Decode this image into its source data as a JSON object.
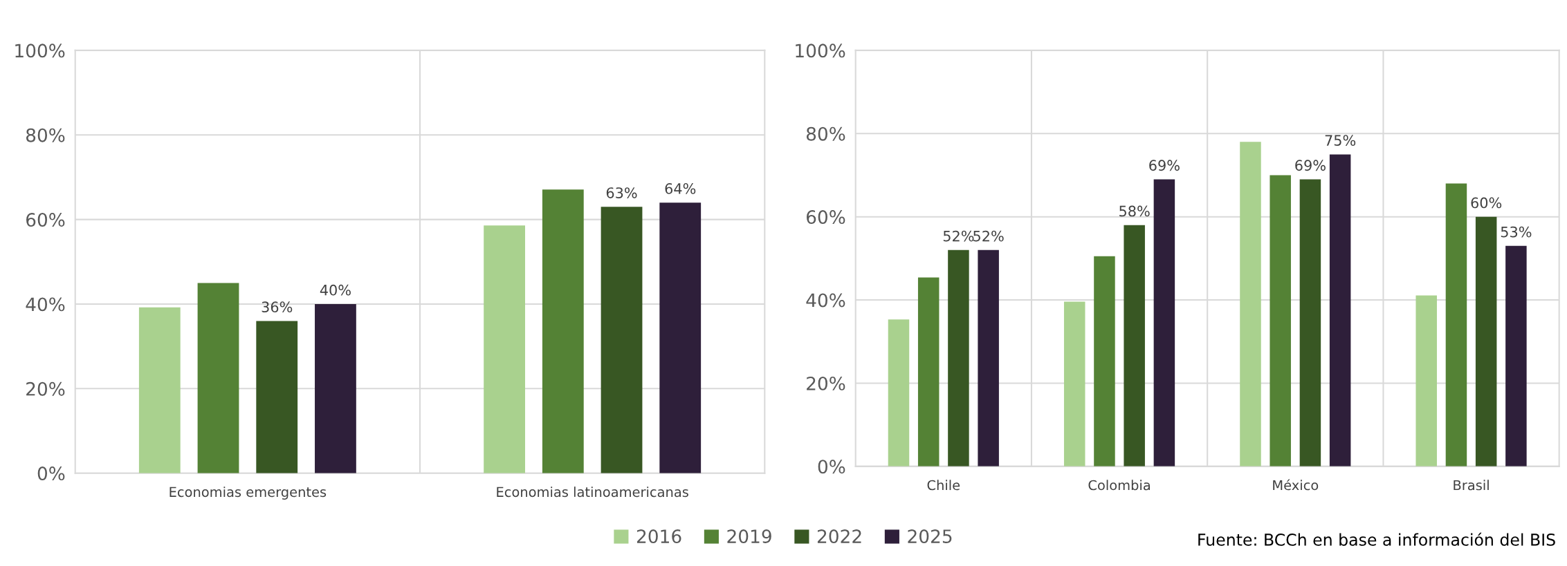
{
  "chart_data": [
    {
      "type": "bar",
      "categories": [
        "Economias emergentes",
        "Economias latinoamericanas"
      ],
      "ylim": [
        0,
        100
      ],
      "yticks": [
        {
          "value": 0,
          "label": "0%"
        },
        {
          "value": 20,
          "label": "20%"
        },
        {
          "value": 40,
          "label": "40%"
        },
        {
          "value": 60,
          "label": "60%"
        },
        {
          "value": 80,
          "label": "80%"
        },
        {
          "value": 100,
          "label": "100%"
        }
      ],
      "grid": true,
      "legend": "bottom",
      "series": [
        {
          "name": "2016",
          "color": "#a9d18e",
          "values": [
            39.2,
            58.6
          ],
          "value_labels": [
            null,
            null
          ]
        },
        {
          "name": "2019",
          "color": "#548235",
          "values": [
            45,
            67.1
          ],
          "value_labels": [
            null,
            null
          ]
        },
        {
          "name": "2022",
          "color": "#385723",
          "values": [
            36,
            63
          ],
          "value_labels": [
            "36%",
            "63%"
          ]
        },
        {
          "name": "2025",
          "color": "#2e1f3a",
          "values": [
            40,
            64
          ],
          "value_labels": [
            "40%",
            "64%"
          ]
        }
      ]
    },
    {
      "type": "bar",
      "categories": [
        "Chile",
        "Colombia",
        "México",
        "Brasil"
      ],
      "ylim": [
        0,
        100
      ],
      "yticks": [
        {
          "value": 0,
          "label": "0%"
        },
        {
          "value": 20,
          "label": "20%"
        },
        {
          "value": 40,
          "label": "40%"
        },
        {
          "value": 60,
          "label": "60%"
        },
        {
          "value": 80,
          "label": "80%"
        },
        {
          "value": 100,
          "label": "100%"
        }
      ],
      "grid": true,
      "annotations": [
        "Fuente: BCCh en base a información del BIS"
      ],
      "series": [
        {
          "name": "2016",
          "color": "#a9d18e",
          "values": [
            35.3,
            39.6,
            78,
            41.1
          ],
          "value_labels": [
            null,
            null,
            null,
            null
          ]
        },
        {
          "name": "2019",
          "color": "#548235",
          "values": [
            45.4,
            50.5,
            70,
            68
          ],
          "value_labels": [
            null,
            null,
            null,
            null
          ]
        },
        {
          "name": "2022",
          "color": "#385723",
          "values": [
            52,
            58,
            69,
            60
          ],
          "value_labels": [
            "52%",
            "58%",
            "69%",
            "60%"
          ]
        },
        {
          "name": "2025",
          "color": "#2e1f3a",
          "values": [
            52,
            69,
            75,
            53
          ],
          "value_labels": [
            "52%",
            "69%",
            "75%",
            "53%"
          ]
        }
      ]
    }
  ]
}
